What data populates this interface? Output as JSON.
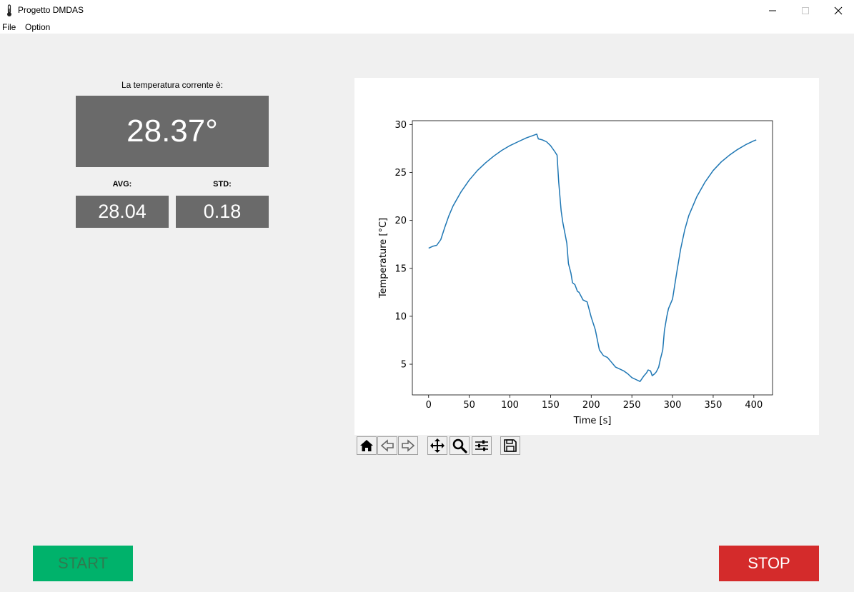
{
  "window": {
    "title": "Progetto DMDAS"
  },
  "menu": {
    "items": [
      "File",
      "Option"
    ]
  },
  "readout": {
    "current_label": "La temperatura corrente è:",
    "current_value": "28.37°",
    "avg_label": "AVG:",
    "avg_value": "28.04",
    "std_label": "STD:",
    "std_value": "0.18"
  },
  "buttons": {
    "start": "START",
    "stop": "STOP"
  },
  "colors": {
    "start_bg": "#00b26b",
    "start_text": "#2f7a4f",
    "stop_bg": "#d42b2b",
    "stop_text": "#ffffff",
    "value_box": "#6a6a6a",
    "line": "#1f77b4"
  },
  "toolbar": {
    "icons": [
      "home-icon",
      "back-arrow-icon",
      "forward-arrow-icon",
      "pan-move-icon",
      "zoom-magnifier-icon",
      "configure-subplots-icon",
      "save-floppy-icon"
    ]
  },
  "chart_data": {
    "type": "line",
    "xlabel": "Time [s]",
    "ylabel": "Temperature [°C]",
    "xlim": [
      -20,
      423
    ],
    "ylim": [
      1.8,
      30.4
    ],
    "xticks": [
      0,
      50,
      100,
      150,
      200,
      250,
      300,
      350,
      400
    ],
    "yticks": [
      5,
      10,
      15,
      20,
      25,
      30
    ],
    "grid": false,
    "x": [
      0,
      5,
      10,
      15,
      20,
      25,
      30,
      40,
      50,
      60,
      70,
      80,
      90,
      100,
      110,
      120,
      130,
      133,
      135,
      140,
      145,
      150,
      155,
      158,
      160,
      163,
      165,
      168,
      170,
      172,
      175,
      177,
      180,
      183,
      185,
      190,
      195,
      200,
      205,
      210,
      215,
      220,
      225,
      230,
      235,
      240,
      245,
      250,
      255,
      260,
      265,
      268,
      270,
      273,
      275,
      278,
      280,
      283,
      285,
      288,
      290,
      293,
      295,
      300,
      305,
      310,
      315,
      320,
      330,
      340,
      350,
      360,
      370,
      380,
      390,
      400,
      403
    ],
    "y": [
      17.1,
      17.3,
      17.4,
      18.0,
      19.3,
      20.5,
      21.5,
      23.0,
      24.2,
      25.2,
      26.0,
      26.7,
      27.3,
      27.8,
      28.2,
      28.6,
      28.9,
      29.0,
      28.5,
      28.4,
      28.2,
      27.8,
      27.2,
      26.8,
      24.0,
      21.0,
      19.8,
      18.5,
      17.6,
      15.5,
      14.5,
      13.5,
      13.3,
      12.6,
      12.5,
      11.7,
      11.5,
      9.9,
      8.6,
      6.5,
      5.9,
      5.7,
      5.2,
      4.7,
      4.5,
      4.3,
      4.0,
      3.6,
      3.4,
      3.2,
      3.8,
      4.1,
      4.4,
      4.3,
      3.8,
      4.0,
      4.2,
      4.7,
      5.5,
      6.5,
      8.5,
      10.0,
      10.8,
      11.8,
      14.5,
      17.0,
      19.0,
      20.5,
      22.5,
      24.0,
      25.2,
      26.1,
      26.8,
      27.4,
      27.9,
      28.3,
      28.4
    ]
  }
}
